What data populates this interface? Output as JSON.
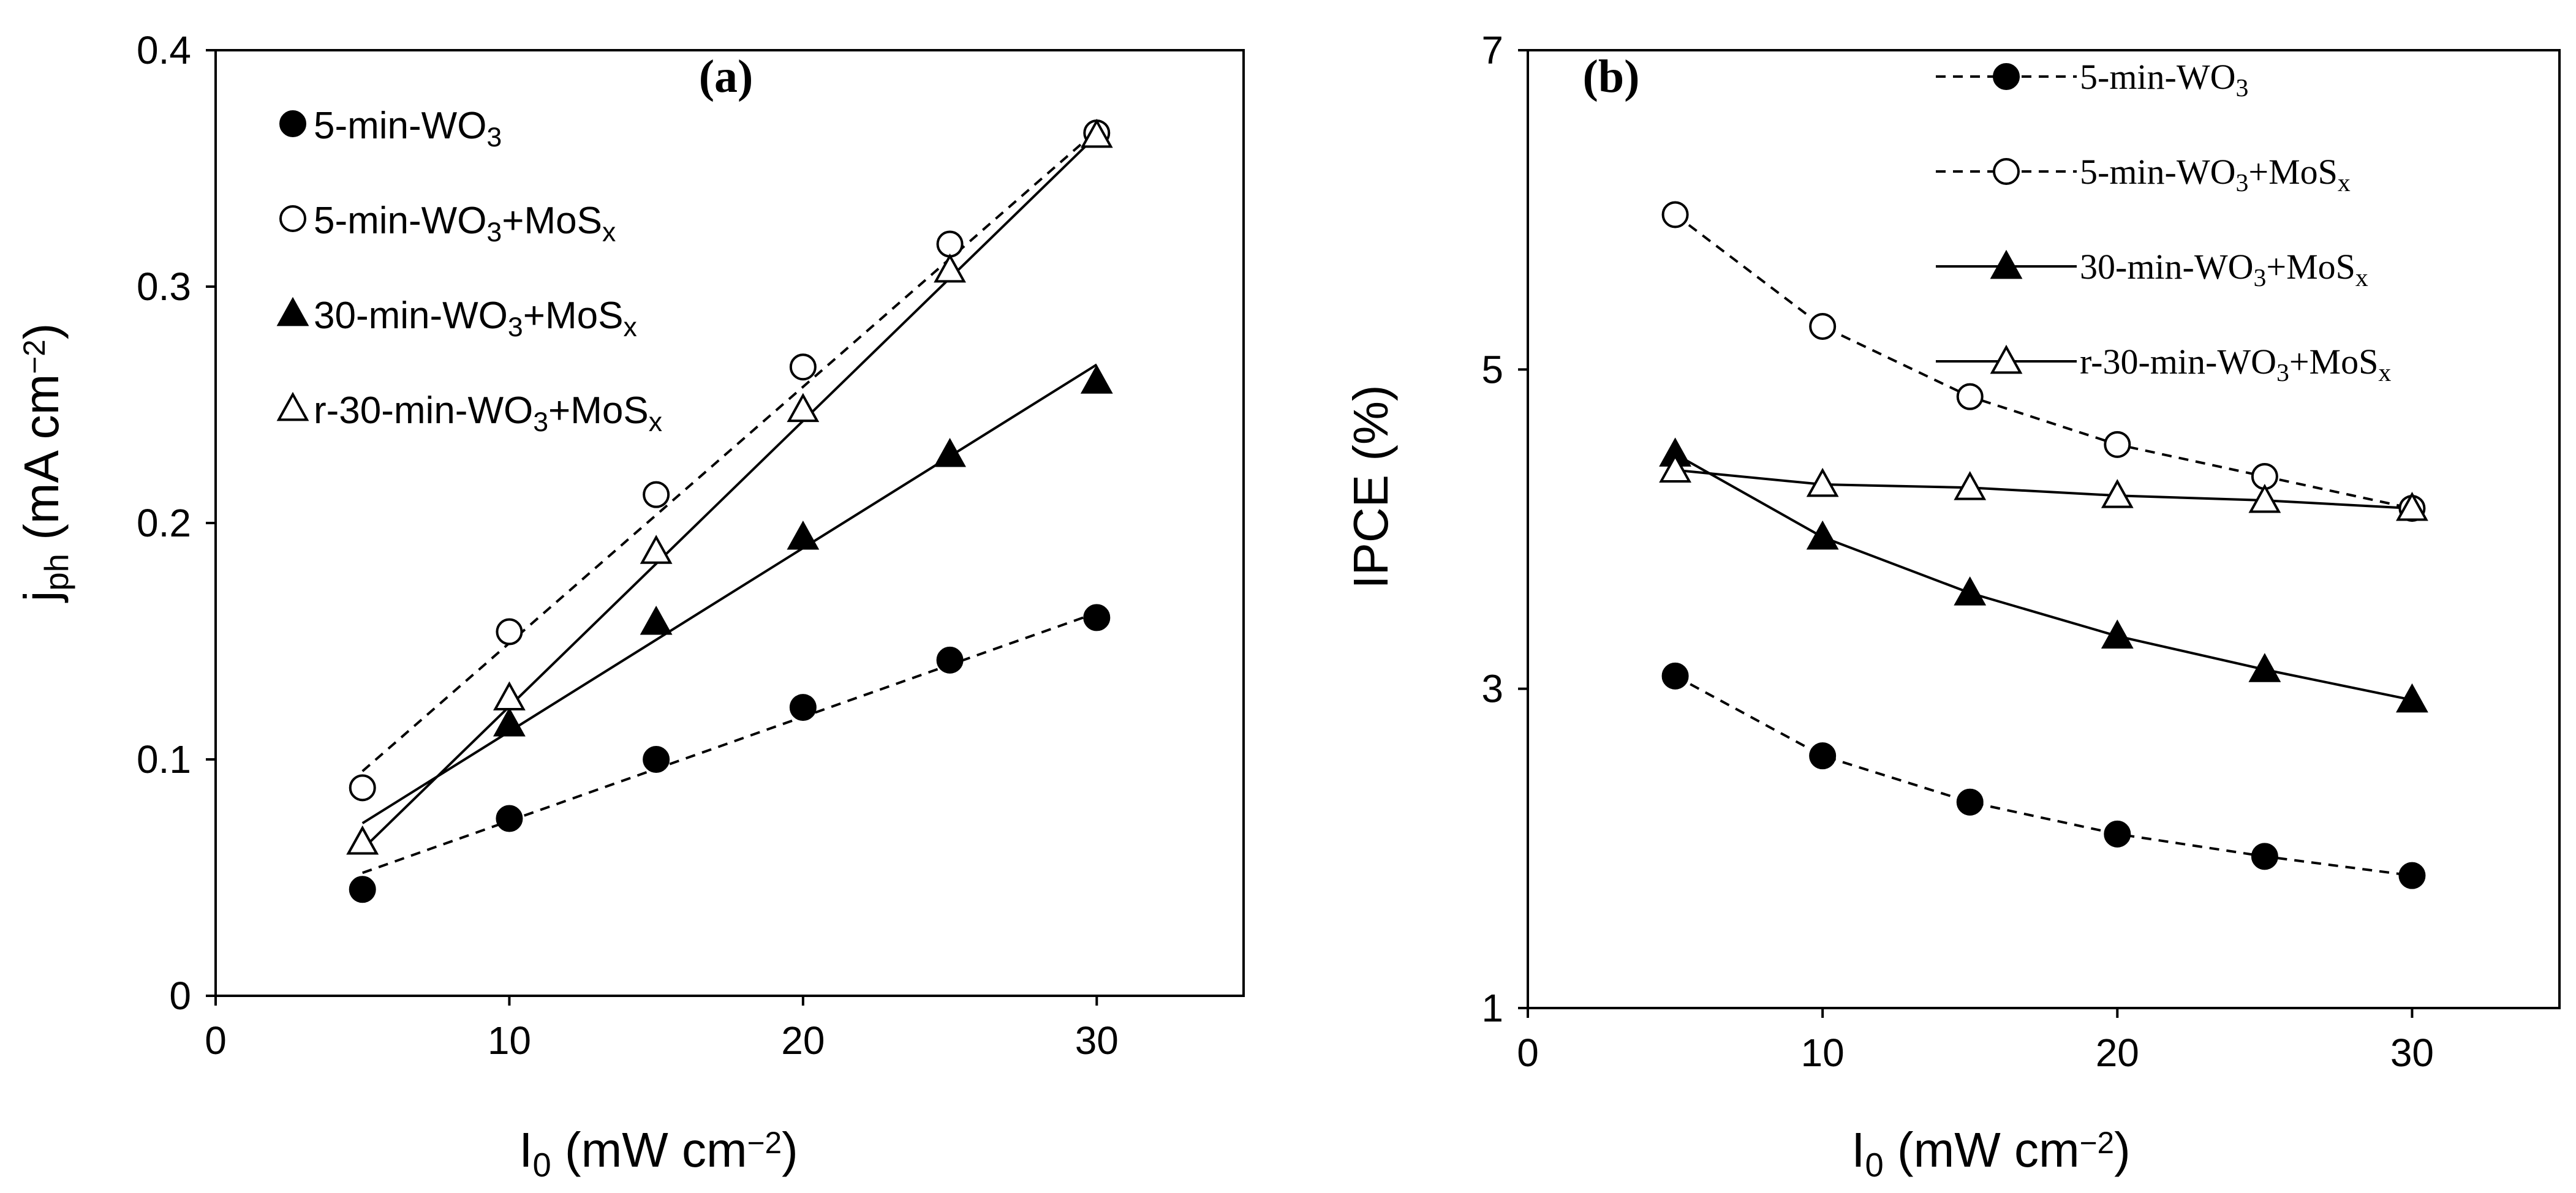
{
  "chart_data": [
    {
      "panel": "(a)",
      "type": "scatter",
      "xlabel": {
        "main": "I",
        "sub": "0",
        "rest": " (mW cm",
        "sup": "−2",
        "end": ")"
      },
      "ylabel": {
        "main": "j",
        "sub": "ph",
        "rest": " (mA cm",
        "sup": "−2",
        "end": ")"
      },
      "xlim": [
        0,
        35
      ],
      "ylim": [
        0,
        0.4
      ],
      "xticks": [
        0,
        10,
        20,
        30
      ],
      "xtick_labels": [
        "0",
        "10",
        "20",
        "30"
      ],
      "yticks": [
        0,
        0.1,
        0.2,
        0.3,
        0.4
      ],
      "ytick_labels": [
        "0",
        "0.1",
        "0.2",
        "0.3",
        "0.4"
      ],
      "grid": false,
      "legend_position": "top-left",
      "series": [
        {
          "name": "5-min-WO3",
          "label": {
            "a": "5-min-WO",
            "sub": "3",
            "b": "",
            "sub2": ""
          },
          "marker": "filled-circle",
          "line": "dashed",
          "line_kind": "linear-fit",
          "fit": [
            [
              5,
              0.052
            ],
            [
              30,
              0.162
            ]
          ],
          "x": [
            5,
            10,
            15,
            20,
            25,
            30
          ],
          "y": [
            0.045,
            0.075,
            0.1,
            0.122,
            0.142,
            0.16
          ]
        },
        {
          "name": "5-min-WO3+MoSx",
          "label": {
            "a": "5-min-WO",
            "sub": "3",
            "b": "+MoS",
            "sub2": "x"
          },
          "marker": "open-circle",
          "line": "dashed",
          "line_kind": "linear-fit",
          "fit": [
            [
              5,
              0.095
            ],
            [
              30,
              0.366
            ]
          ],
          "x": [
            5,
            10,
            15,
            20,
            25,
            30
          ],
          "y": [
            0.088,
            0.154,
            0.212,
            0.266,
            0.318,
            0.365
          ]
        },
        {
          "name": "30-min-WO3+MoSx",
          "label": {
            "a": "30-min-WO",
            "sub": "3",
            "b": "+MoS",
            "sub2": "x"
          },
          "marker": "filled-triangle",
          "line": "solid",
          "line_kind": "linear-fit",
          "fit": [
            [
              5,
              0.073
            ],
            [
              30,
              0.267
            ]
          ],
          "x": [
            5,
            10,
            15,
            20,
            25,
            30
          ],
          "y": [
            0.065,
            0.115,
            0.158,
            0.194,
            0.229,
            0.26
          ]
        },
        {
          "name": "r-30-min-WO3+MoSx",
          "label": {
            "a": "r-30-min-WO",
            "sub": "3",
            "b": "+MoS",
            "sub2": "x"
          },
          "marker": "open-triangle",
          "line": "solid",
          "line_kind": "linear-fit",
          "fit": [
            [
              5,
              0.062
            ],
            [
              30,
              0.364
            ]
          ],
          "x": [
            5,
            10,
            15,
            20,
            25,
            30
          ],
          "y": [
            0.065,
            0.126,
            0.188,
            0.248,
            0.307,
            0.364
          ]
        }
      ]
    },
    {
      "panel": "(b)",
      "type": "line",
      "xlabel": {
        "main": "I",
        "sub": "0",
        "rest": " (mW cm",
        "sup": "−2",
        "end": ")"
      },
      "ylabel": {
        "main": "IPCE (%)",
        "sub": "",
        "rest": "",
        "sup": "",
        "end": ""
      },
      "xlim": [
        0,
        35
      ],
      "ylim": [
        1,
        7
      ],
      "xticks": [
        0,
        10,
        20,
        30
      ],
      "xtick_labels": [
        "0",
        "10",
        "20",
        "30"
      ],
      "yticks": [
        1,
        3,
        5,
        7
      ],
      "ytick_labels": [
        "1",
        "3",
        "5",
        "7"
      ],
      "grid": false,
      "legend_position": "top-right",
      "series": [
        {
          "name": "5-min-WO3",
          "label": {
            "a": "5-min-WO",
            "sub": "3",
            "b": "",
            "sub2": ""
          },
          "marker": "filled-circle",
          "line": "dashed",
          "line_kind": "connected",
          "x": [
            5,
            10,
            15,
            20,
            25,
            30
          ],
          "y": [
            3.08,
            2.58,
            2.29,
            2.09,
            1.95,
            1.83
          ]
        },
        {
          "name": "5-min-WO3+MoSx",
          "label": {
            "a": "5-min-WO",
            "sub": "3",
            "b": "+MoS",
            "sub2": "x"
          },
          "marker": "open-circle",
          "line": "dashed",
          "line_kind": "connected",
          "x": [
            5,
            10,
            15,
            20,
            25,
            30
          ],
          "y": [
            5.97,
            5.27,
            4.83,
            4.53,
            4.33,
            4.13
          ]
        },
        {
          "name": "30-min-WO3+MoSx",
          "label": {
            "a": "30-min-WO",
            "sub": "3",
            "b": "+MoS",
            "sub2": "x"
          },
          "marker": "filled-triangle",
          "line": "solid",
          "line_kind": "connected",
          "x": [
            5,
            10,
            15,
            20,
            25,
            30
          ],
          "y": [
            4.47,
            3.95,
            3.6,
            3.33,
            3.12,
            2.93
          ]
        },
        {
          "name": "r-30-min-WO3+MoSx",
          "label": {
            "a": "r-30-min-WO",
            "sub": "3",
            "b": "+MoS",
            "sub2": "x"
          },
          "marker": "open-triangle",
          "line": "solid",
          "line_kind": "connected",
          "x": [
            5,
            10,
            15,
            20,
            25,
            30
          ],
          "y": [
            4.37,
            4.28,
            4.26,
            4.21,
            4.18,
            4.13
          ]
        }
      ]
    }
  ]
}
